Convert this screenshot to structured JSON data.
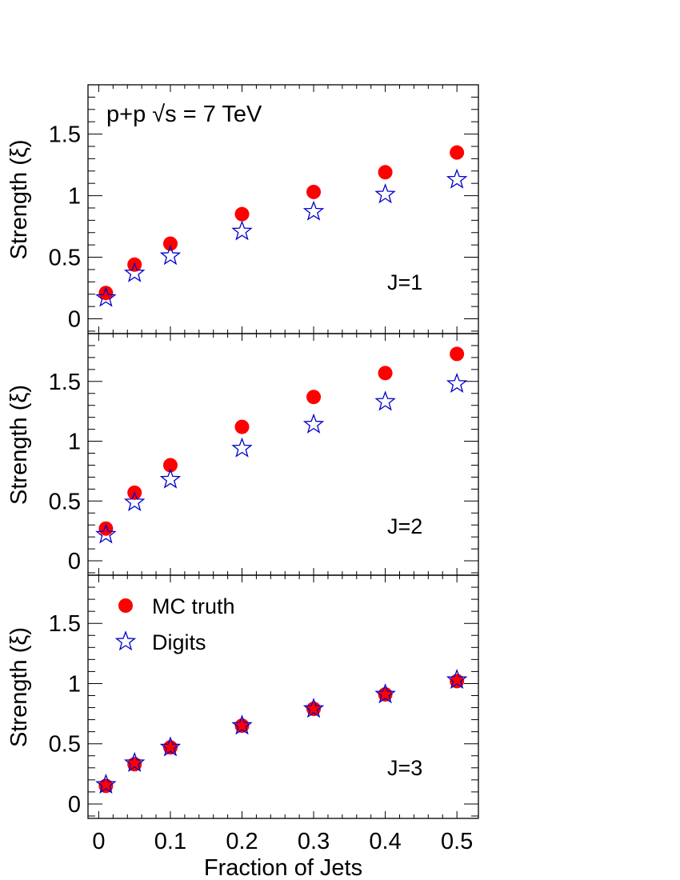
{
  "chart_data": {
    "type": "scatter",
    "annotation": "p+p  √s = 7 TeV",
    "xlabel": "Fraction of Jets",
    "ylabel": "Strength (ξ)",
    "xlim": [
      -0.015,
      0.53
    ],
    "ylim": [
      -0.12,
      1.9
    ],
    "x_tick_labels": [
      "0",
      "0.1",
      "0.2",
      "0.3",
      "0.4",
      "0.5"
    ],
    "y_tick_labels": [
      "0",
      "0.5",
      "1",
      "1.5"
    ],
    "legend": {
      "placement": "top-left of bottom panel",
      "entries": [
        {
          "name": "MC truth",
          "marker": "filled-circle",
          "color": "#ff0000"
        },
        {
          "name": "Digits",
          "marker": "open-star",
          "color": "#0000cc"
        }
      ]
    },
    "x": [
      0.01,
      0.05,
      0.1,
      0.2,
      0.3,
      0.4,
      0.5
    ],
    "panels": [
      {
        "label": "J=1",
        "series": [
          {
            "name": "MC truth",
            "values": [
              0.21,
              0.44,
              0.61,
              0.85,
              1.03,
              1.19,
              1.35
            ]
          },
          {
            "name": "Digits",
            "values": [
              0.17,
              0.37,
              0.51,
              0.71,
              0.87,
              1.01,
              1.13
            ]
          }
        ]
      },
      {
        "label": "J=2",
        "series": [
          {
            "name": "MC truth",
            "values": [
              0.27,
              0.57,
              0.8,
              1.12,
              1.37,
              1.57,
              1.73
            ]
          },
          {
            "name": "Digits",
            "values": [
              0.22,
              0.49,
              0.68,
              0.94,
              1.14,
              1.33,
              1.48
            ]
          }
        ]
      },
      {
        "label": "J=3",
        "series": [
          {
            "name": "MC truth",
            "values": [
              0.15,
              0.33,
              0.47,
              0.65,
              0.79,
              0.91,
              1.02
            ]
          },
          {
            "name": "Digits",
            "values": [
              0.16,
              0.34,
              0.47,
              0.65,
              0.79,
              0.91,
              1.03
            ]
          }
        ]
      }
    ]
  }
}
